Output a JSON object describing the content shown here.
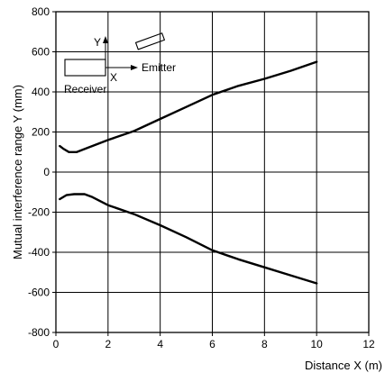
{
  "chart_data": {
    "type": "line",
    "xlabel": "Distance X (m)",
    "ylabel": "Mutual interference range Y (mm)",
    "xlim": [
      0,
      12
    ],
    "ylim": [
      -800,
      800
    ],
    "xticks": [
      0,
      2,
      4,
      6,
      8,
      10,
      12
    ],
    "yticks": [
      -800,
      -600,
      -400,
      -200,
      0,
      200,
      400,
      600,
      800
    ],
    "grid": true,
    "series": [
      {
        "x": [
          0.15,
          0.3,
          0.5,
          0.8,
          1.2,
          2.0,
          3.0,
          4.0,
          5.0,
          6.0,
          7.0,
          8.0,
          9.0,
          10.0
        ],
        "y": [
          130,
          115,
          100,
          100,
          120,
          160,
          205,
          265,
          325,
          385,
          430,
          465,
          505,
          550
        ]
      },
      {
        "x": [
          0.15,
          0.4,
          0.7,
          1.1,
          1.4,
          2.0,
          3.0,
          4.0,
          5.0,
          6.0,
          7.0,
          8.0,
          9.0,
          10.0
        ],
        "y": [
          -135,
          -115,
          -110,
          -110,
          -125,
          -165,
          -210,
          -265,
          -325,
          -390,
          -435,
          -475,
          -515,
          -555
        ]
      }
    ],
    "inset": {
      "x_label": "X",
      "y_label": "Y",
      "emitter_label": "Emitter",
      "receiver_label": "Receiver"
    }
  }
}
